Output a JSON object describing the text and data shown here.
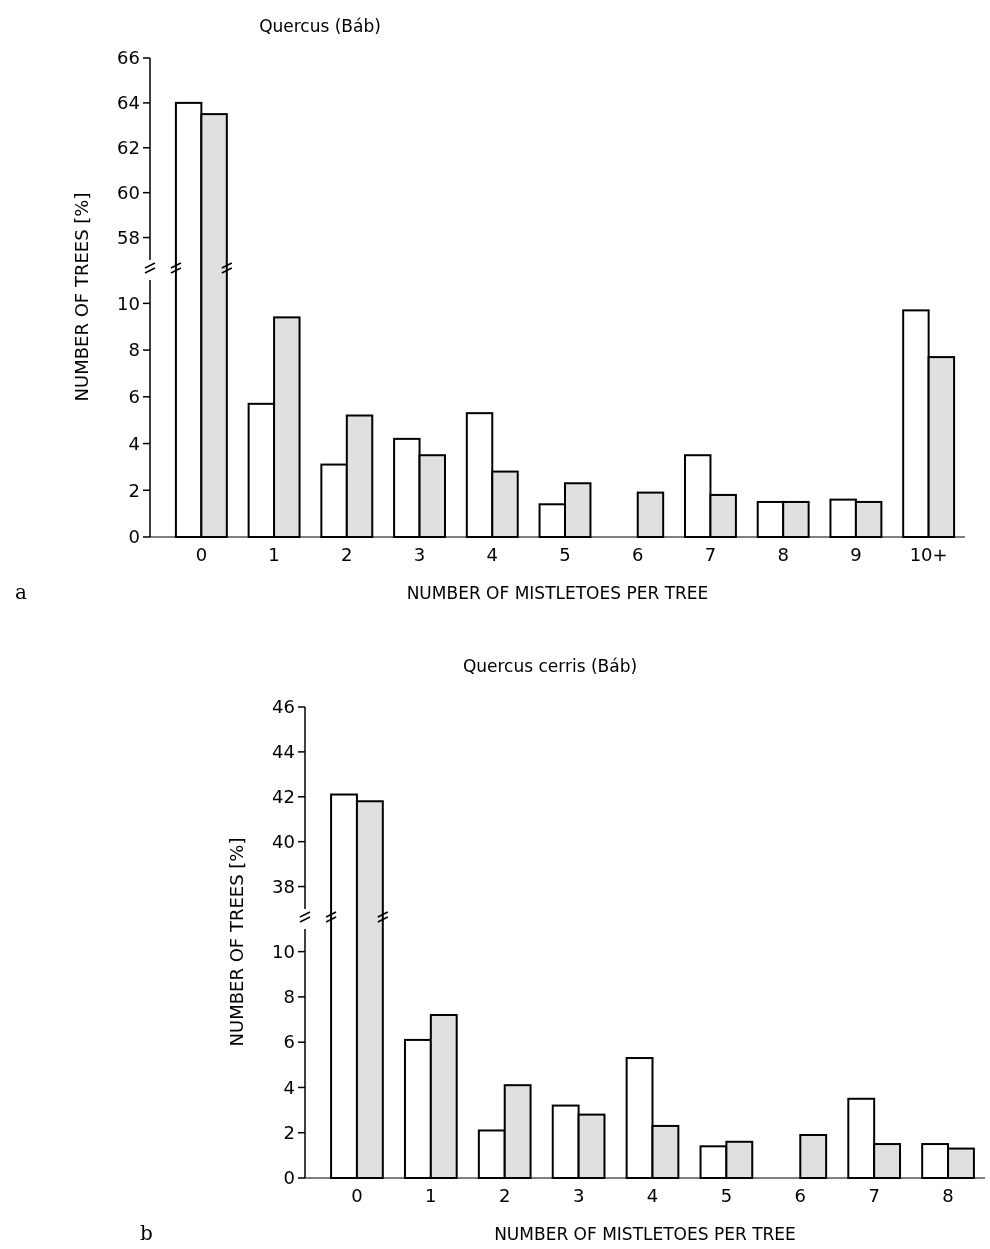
{
  "chart_data": [
    {
      "type": "bar",
      "title": "Quercus  (Báb)",
      "tick_labels": "y",
      "categories": [
        null
      ],
      "series": [
        {
          "color": "#ffffff",
          "values": [
            64
          ]
        },
        {
          "color": "#e0e0e0",
          "values": [
            63.5
          ]
        }
      ],
      "ylim": [
        57,
        66
      ],
      "yticks": [
        58,
        60,
        62,
        64,
        66
      ]
    },
    {
      "type": "bar",
      "xlabel": "NUMBER OF MISTLETOES PER TREE",
      "ylabel": "NUMBER OF TREES [%]",
      "annotations": [
        "a"
      ],
      "categories": [
        "0",
        "1",
        "2",
        "3",
        "4",
        "5",
        "6",
        "7",
        "8",
        "9",
        "10+"
      ],
      "series": [
        {
          "color": "#ffffff",
          "values": [
            null,
            5.7,
            3.1,
            4.2,
            5.3,
            1.4,
            0,
            3.5,
            1.5,
            1.6,
            9.7
          ]
        },
        {
          "color": "#e0e0e0",
          "values": [
            null,
            9.4,
            5.2,
            3.5,
            2.8,
            2.3,
            1.9,
            1.8,
            1.5,
            1.5,
            7.7
          ]
        }
      ],
      "ylim": [
        0,
        11
      ],
      "yticks": [
        0,
        2,
        4,
        6,
        8,
        10
      ]
    },
    {
      "type": "bar",
      "title": "Quercus cerris  (Báb)",
      "tick_labels": "y",
      "categories": [
        null
      ],
      "series": [
        {
          "color": "#ffffff",
          "values": [
            42.1
          ]
        },
        {
          "color": "#e0e0e0",
          "values": [
            41.8
          ]
        }
      ],
      "ylim": [
        37,
        46
      ],
      "yticks": [
        38,
        40,
        42,
        44,
        46
      ]
    },
    {
      "type": "bar",
      "xlabel": "NUMBER OF MISTLETOES PER TREE",
      "ylabel": "NUMBER OF TREES [%]",
      "annotations": [
        "b"
      ],
      "categories": [
        "0",
        "1",
        "2",
        "3",
        "4",
        "5",
        "6",
        "7",
        "8"
      ],
      "series": [
        {
          "color": "#ffffff",
          "values": [
            null,
            6.1,
            2.1,
            3.2,
            5.3,
            1.4,
            0,
            3.5,
            1.5
          ]
        },
        {
          "color": "#e0e0e0",
          "values": [
            null,
            7.2,
            4.1,
            2.8,
            2.3,
            1.6,
            1.9,
            1.5,
            1.3
          ]
        }
      ],
      "ylim": [
        0,
        11
      ],
      "yticks": [
        0,
        2,
        4,
        6,
        8,
        10
      ]
    }
  ]
}
